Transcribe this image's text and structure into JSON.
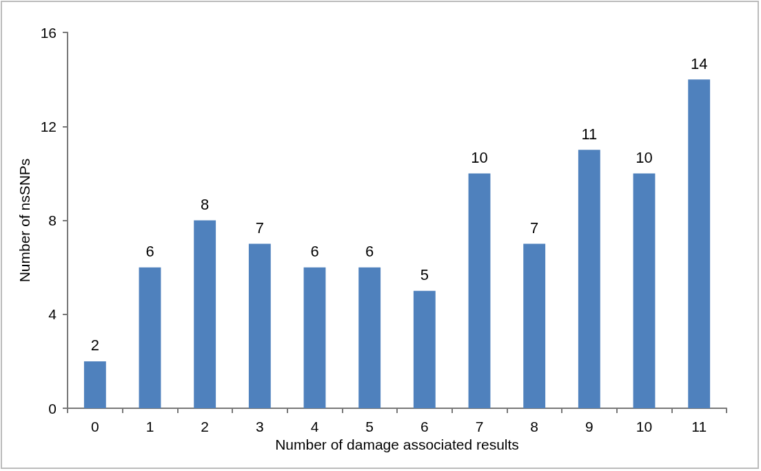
{
  "chart_data": {
    "type": "bar",
    "categories": [
      "0",
      "1",
      "2",
      "3",
      "4",
      "5",
      "6",
      "7",
      "8",
      "9",
      "10",
      "11"
    ],
    "values": [
      2,
      6,
      8,
      7,
      6,
      6,
      5,
      10,
      7,
      11,
      10,
      14
    ],
    "color": "#4f81bd",
    "xlabel": "Number of damage associated results",
    "ylabel": "Number of nsSNPs",
    "ylim": [
      0,
      16
    ],
    "yticks": [
      0,
      4,
      8,
      12,
      16
    ],
    "data_labels": true
  }
}
